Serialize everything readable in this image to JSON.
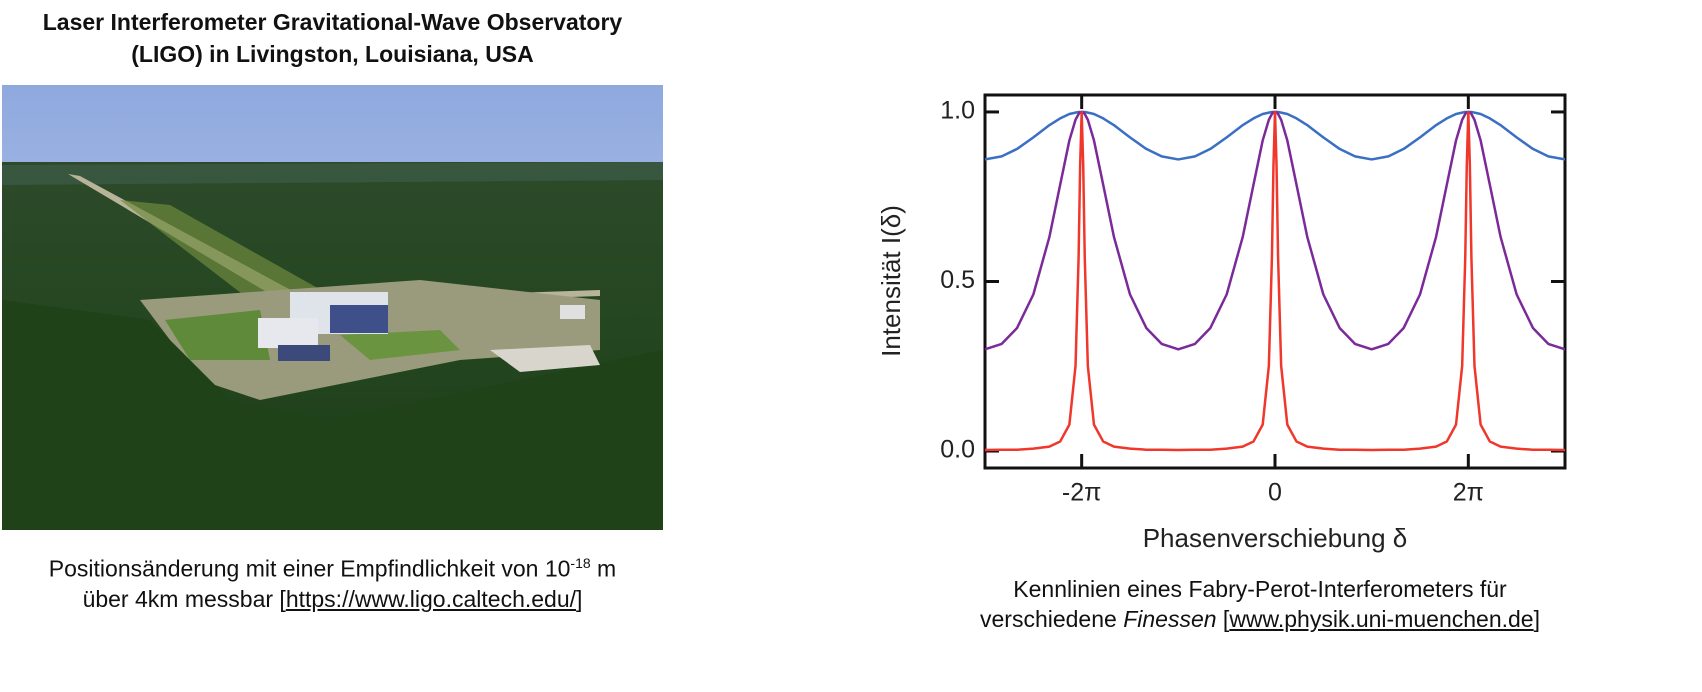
{
  "left": {
    "title": [
      "Laser Interferometer Gravitational-Wave Observatory",
      "(LIGO)  in Livingston, Louisiana, USA"
    ],
    "caption": {
      "line1": "Positionsänderung mit einer Empfindlichkeit von 10",
      "exponent": "-18",
      "unit": " m",
      "line2": "über 4km messbar [",
      "link": "https://www.ligo.caltech.edu/",
      "close": "]"
    }
  },
  "right": {
    "caption": {
      "line1": "Kennlinien eines Fabry-Perot-Interferometers für",
      "line2": "verschiedene ",
      "italic": "Finessen",
      "open": " [",
      "link": "www.physik.uni-muenchen.de",
      "close": "]"
    }
  },
  "chart_data": {
    "type": "line",
    "x_label": "Phasenverschiebung δ",
    "y_label": "Intensität I(δ)",
    "xlim": [
      -9.425,
      9.425
    ],
    "ylim": [
      -0.05,
      1.05
    ],
    "xticks": [
      {
        "value": -6.283,
        "label": "-2π"
      },
      0,
      {
        "value": 6.283,
        "label": "2π"
      }
    ],
    "yticks": [
      {
        "value": 0,
        "label": "0.0"
      },
      {
        "value": 0.5,
        "label": "0.5"
      },
      {
        "value": 1,
        "label": "1.0"
      }
    ],
    "x": [
      -9.425,
      -8.883,
      -8.383,
      -7.853,
      -7.333,
      -6.983,
      -6.683,
      -6.483,
      -6.383,
      -6.333,
      -6.283,
      -6.233,
      -6.183,
      -6.083,
      -5.883,
      -5.583,
      -5.233,
      -4.713,
      -4.183,
      -3.683,
      -3.142,
      -2.6,
      -2.1,
      -1.57,
      -1.05,
      -0.7,
      -0.4,
      -0.2,
      -0.1,
      -0.05,
      0,
      0.05,
      0.1,
      0.2,
      0.4,
      0.7,
      1.05,
      1.57,
      2.1,
      2.6,
      3.142,
      3.683,
      4.183,
      4.713,
      5.233,
      5.583,
      5.883,
      6.083,
      6.183,
      6.233,
      6.283,
      6.333,
      6.383,
      6.483,
      6.683,
      6.983,
      7.333,
      7.853,
      8.383,
      8.883,
      9.425
    ],
    "series": [
      {
        "color": "#3a6fc4",
        "values": [
          0.86,
          0.869,
          0.891,
          0.925,
          0.961,
          0.981,
          0.994,
          0.998,
          1,
          1,
          1,
          1,
          1,
          0.998,
          0.994,
          0.981,
          0.961,
          0.925,
          0.891,
          0.869,
          0.86,
          0.869,
          0.891,
          0.925,
          0.961,
          0.981,
          0.994,
          0.998,
          1,
          1,
          1,
          1,
          1,
          0.998,
          0.994,
          0.981,
          0.961,
          0.925,
          0.891,
          0.869,
          0.86,
          0.869,
          0.891,
          0.925,
          0.961,
          0.981,
          0.994,
          0.998,
          1,
          1,
          1,
          1,
          1,
          0.998,
          0.994,
          0.981,
          0.961,
          0.925,
          0.891,
          0.869,
          0.86
        ]
      },
      {
        "color": "#7b2a9a",
        "values": [
          0.3,
          0.316,
          0.363,
          0.462,
          0.631,
          0.785,
          0.916,
          0.977,
          0.994,
          0.999,
          1,
          0.999,
          0.994,
          0.977,
          0.916,
          0.785,
          0.631,
          0.462,
          0.363,
          0.316,
          0.3,
          0.316,
          0.363,
          0.462,
          0.631,
          0.785,
          0.916,
          0.977,
          0.994,
          0.999,
          1,
          0.999,
          0.994,
          0.977,
          0.916,
          0.785,
          0.631,
          0.462,
          0.363,
          0.316,
          0.3,
          0.316,
          0.363,
          0.462,
          0.631,
          0.785,
          0.916,
          0.977,
          0.994,
          0.999,
          1,
          0.999,
          0.994,
          0.977,
          0.916,
          0.785,
          0.631,
          0.462,
          0.363,
          0.316,
          0.3
        ]
      },
      {
        "color": "#f0372b",
        "values": [
          0.003,
          0.004,
          0.004,
          0.007,
          0.013,
          0.028,
          0.078,
          0.251,
          0.571,
          0.842,
          1,
          0.842,
          0.571,
          0.251,
          0.078,
          0.028,
          0.013,
          0.007,
          0.004,
          0.004,
          0.003,
          0.004,
          0.004,
          0.007,
          0.013,
          0.028,
          0.078,
          0.251,
          0.571,
          0.842,
          1,
          0.842,
          0.571,
          0.251,
          0.078,
          0.028,
          0.013,
          0.007,
          0.004,
          0.004,
          0.003,
          0.004,
          0.004,
          0.007,
          0.013,
          0.028,
          0.078,
          0.251,
          0.571,
          0.842,
          1,
          0.842,
          0.571,
          0.251,
          0.078,
          0.028,
          0.013,
          0.007,
          0.004,
          0.004,
          0.003
        ]
      }
    ]
  }
}
